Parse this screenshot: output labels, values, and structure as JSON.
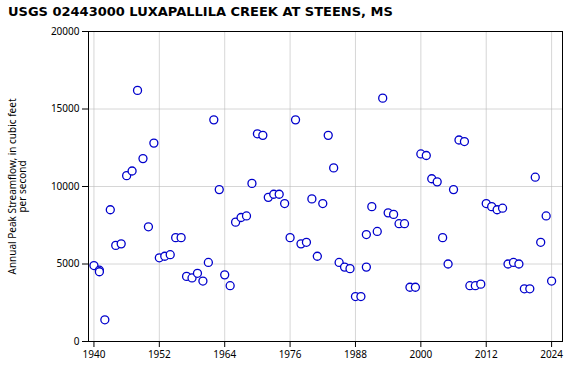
{
  "chart_data": {
    "type": "scatter",
    "title": "USGS 02443000 LUXAPALLILA CREEK AT STEENS, MS",
    "ylabel": "Annual Peak Streamflow, in cubic feet\nper second",
    "x": [
      1940,
      1941,
      1941,
      1942,
      1943,
      1944,
      1945,
      1946,
      1947,
      1948,
      1949,
      1950,
      1951,
      1952,
      1953,
      1954,
      1955,
      1956,
      1957,
      1958,
      1959,
      1960,
      1961,
      1962,
      1963,
      1964,
      1965,
      1966,
      1967,
      1968,
      1969,
      1970,
      1971,
      1972,
      1973,
      1974,
      1975,
      1976,
      1977,
      1978,
      1979,
      1980,
      1981,
      1982,
      1983,
      1984,
      1985,
      1986,
      1987,
      1988,
      1989,
      1990,
      1990,
      1991,
      1992,
      1993,
      1994,
      1995,
      1996,
      1997,
      1998,
      1999,
      2000,
      2001,
      2002,
      2003,
      2004,
      2005,
      2006,
      2007,
      2008,
      2009,
      2010,
      2011,
      2012,
      2013,
      2014,
      2015,
      2016,
      2017,
      2018,
      2019,
      2020,
      2021,
      2022,
      2023,
      2024
    ],
    "values": [
      4900,
      4600,
      4500,
      1400,
      8500,
      6200,
      6300,
      10700,
      11000,
      16200,
      11800,
      7400,
      12800,
      5400,
      5500,
      5600,
      6700,
      6700,
      4200,
      4100,
      4400,
      3900,
      5100,
      14300,
      9800,
      4300,
      3600,
      7700,
      8000,
      8100,
      10200,
      13400,
      13300,
      9300,
      9500,
      9500,
      8900,
      6700,
      14300,
      6300,
      6400,
      9200,
      5500,
      8900,
      13300,
      11200,
      5100,
      4800,
      4700,
      2900,
      2900,
      6900,
      4800,
      8700,
      7100,
      15700,
      8300,
      8200,
      7600,
      7600,
      3500,
      3500,
      12100,
      12000,
      10500,
      10300,
      6700,
      5000,
      9800,
      13000,
      12900,
      3600,
      3600,
      3700,
      8900,
      8700,
      8500,
      8600,
      5000,
      5100,
      5000,
      3400,
      3400,
      10600,
      6400,
      8100,
      3900
    ],
    "color": "#0000cc",
    "marker": "circle",
    "xlim": [
      1939,
      2026
    ],
    "ylim": [
      0,
      20000
    ],
    "xticks": [
      1940,
      1952,
      1964,
      1976,
      1988,
      2000,
      2012,
      2024
    ],
    "yticks": [
      0,
      5000,
      10000,
      15000,
      20000
    ],
    "grid": true
  }
}
